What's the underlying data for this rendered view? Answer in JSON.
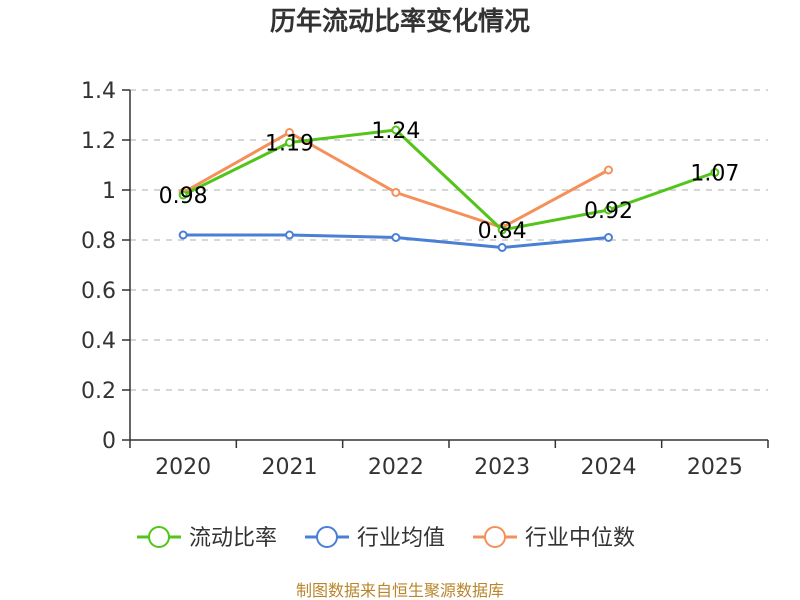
{
  "chart_data": {
    "type": "line",
    "title": "历年流动比率变化情况",
    "categories": [
      "2020",
      "2021",
      "2022",
      "2023",
      "2024",
      "2025"
    ],
    "ylim": [
      0,
      1.4
    ],
    "yticks": [
      "0",
      "0.2",
      "0.4",
      "0.6",
      "0.8",
      "1",
      "1.2",
      "1.4"
    ],
    "ytick_values": [
      0,
      0.2,
      0.4,
      0.6,
      0.8,
      1,
      1.2,
      1.4
    ],
    "grid": true,
    "legend_position": "bottom",
    "series": [
      {
        "name": "流动比率",
        "color": "#52c41a",
        "values": [
          0.98,
          1.19,
          1.24,
          0.84,
          0.92,
          1.07
        ],
        "labels": [
          "0.98",
          "1.19",
          "1.24",
          "0.84",
          "0.92",
          "1.07"
        ],
        "show_labels": true
      },
      {
        "name": "行业均值",
        "color": "#4a7fd6",
        "values": [
          0.82,
          0.82,
          0.81,
          0.77,
          0.81,
          null
        ],
        "show_labels": false
      },
      {
        "name": "行业中位数",
        "color": "#f5905a",
        "values": [
          0.99,
          1.23,
          0.99,
          0.85,
          1.08,
          null
        ],
        "show_labels": false
      }
    ]
  },
  "source": "制图数据来自恒生聚源数据库"
}
